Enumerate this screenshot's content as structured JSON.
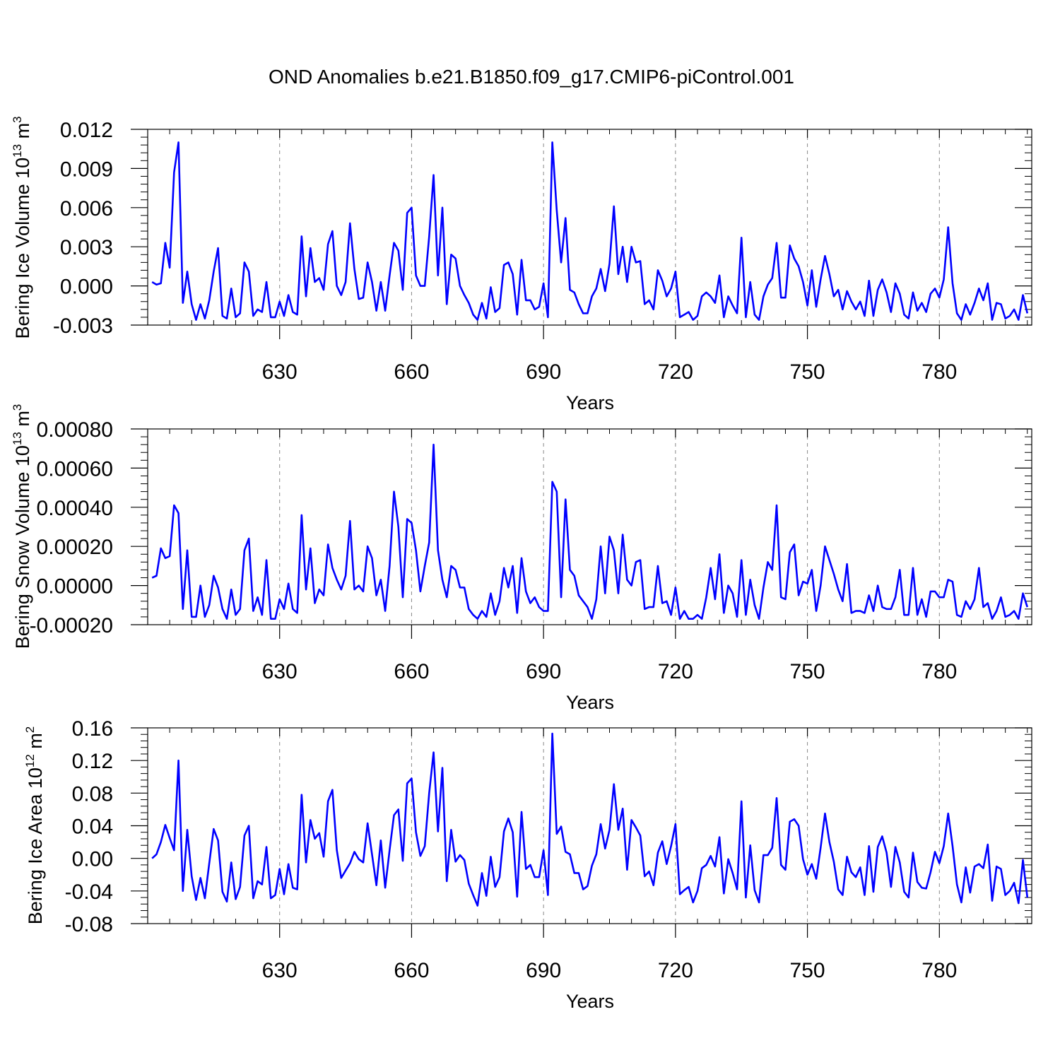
{
  "title": "OND Anomalies b.e21.B1850.f09_g17.CMIP6-piControl.001",
  "line_color": "#0000ff",
  "chart_data": [
    {
      "type": "line",
      "ylabel": {
        "main": "Bering Ice Volume 10",
        "sup1": "13",
        "mid": " m",
        "sup2": "3"
      },
      "xlabel": "Years",
      "x_start": 601,
      "xlim": [
        600,
        801
      ],
      "ylim": [
        -0.003,
        0.012
      ],
      "yticks": [
        -0.003,
        0.0,
        0.003,
        0.006,
        0.009,
        0.012
      ],
      "yticklabels": [
        "-0.003",
        "0.000",
        "0.003",
        "0.006",
        "0.009",
        "0.012"
      ],
      "xticks": [
        630,
        660,
        690,
        720,
        750,
        780
      ],
      "xticklabels": [
        "630",
        "660",
        "690",
        "720",
        "750",
        "780"
      ],
      "series": [
        {
          "name": "Bering Ice Volume",
          "values": [
            0.0003,
            0.0001,
            0.0002,
            0.0033,
            0.0014,
            0.0087,
            0.011,
            -0.0013,
            0.0011,
            -0.0014,
            -0.0026,
            -0.0014,
            -0.0025,
            -0.0011,
            0.0011,
            0.0029,
            -0.0023,
            -0.0025,
            -0.0002,
            -0.0024,
            -0.0021,
            0.0018,
            0.0011,
            -0.0023,
            -0.0018,
            -0.002,
            0.0003,
            -0.0024,
            -0.0024,
            -0.0012,
            -0.0023,
            -0.0007,
            -0.002,
            -0.0022,
            0.0038,
            -0.0008,
            0.0029,
            0.0003,
            0.0006,
            -0.0003,
            0.0032,
            0.0042,
            0.0,
            -0.0007,
            0.0003,
            0.0048,
            0.0013,
            -0.001,
            -0.0009,
            0.0018,
            0.0003,
            -0.0019,
            0.0003,
            -0.0019,
            0.0008,
            0.0033,
            0.0027,
            -0.0003,
            0.0056,
            0.006,
            0.0008,
            0.0,
            0.0,
            0.0038,
            0.0085,
            0.0008,
            0.006,
            -0.0014,
            0.0024,
            0.0021,
            0.0,
            -0.0007,
            -0.0013,
            -0.0022,
            -0.0026,
            -0.0013,
            -0.0025,
            -0.0001,
            -0.002,
            -0.0017,
            0.0016,
            0.0018,
            0.0009,
            -0.0022,
            0.002,
            -0.0011,
            -0.0011,
            -0.0018,
            -0.0016,
            0.0002,
            -0.0024,
            0.011,
            0.0058,
            0.0018,
            0.0052,
            -0.0003,
            -0.0005,
            -0.0014,
            -0.0021,
            -0.0021,
            -0.0008,
            -0.0002,
            0.0013,
            -0.0004,
            0.0017,
            0.0061,
            0.0009,
            0.003,
            0.0003,
            0.003,
            0.0018,
            0.0019,
            -0.0014,
            -0.0011,
            -0.0018,
            0.0012,
            0.0004,
            -0.0008,
            -0.0002,
            0.0011,
            -0.0024,
            -0.0022,
            -0.002,
            -0.0026,
            -0.0023,
            -0.0008,
            -0.0005,
            -0.0008,
            -0.0013,
            0.0008,
            -0.0024,
            -0.0008,
            -0.0015,
            -0.0021,
            0.0037,
            -0.0024,
            0.0003,
            -0.0022,
            -0.0026,
            -0.0008,
            0.0001,
            0.0006,
            0.0033,
            -0.0009,
            -0.0009,
            0.0031,
            0.0021,
            0.0015,
            0.0003,
            -0.0015,
            0.0012,
            -0.0016,
            0.0005,
            0.0023,
            0.0009,
            -0.0008,
            -0.0003,
            -0.0018,
            -0.0004,
            -0.0012,
            -0.0018,
            -0.0012,
            -0.0023,
            0.0004,
            -0.0023,
            -0.0003,
            0.0005,
            -0.0005,
            -0.002,
            0.0002,
            -0.0006,
            -0.0022,
            -0.0025,
            -0.0005,
            -0.0019,
            -0.0013,
            -0.002,
            -0.0006,
            -0.0002,
            -0.0009,
            0.0005,
            0.0045,
            0.0002,
            -0.0021,
            -0.0026,
            -0.0014,
            -0.0022,
            -0.0013,
            -0.0002,
            -0.0011,
            0.0002,
            -0.0026,
            -0.0013,
            -0.0014,
            -0.0025,
            -0.0023,
            -0.0018,
            -0.0026,
            -0.0007,
            -0.0021
          ]
        }
      ]
    },
    {
      "type": "line",
      "ylabel": {
        "main": "Bering Snow Volume 10",
        "sup1": "13",
        "mid": " m",
        "sup2": "3"
      },
      "xlabel": "Years",
      "x_start": 601,
      "xlim": [
        600,
        801
      ],
      "ylim": [
        -0.0002,
        0.0008
      ],
      "yticks": [
        -0.0002,
        0.0,
        0.0002,
        0.0004,
        0.0006,
        0.0008
      ],
      "yticklabels": [
        "-0.00020",
        "0.00000",
        "0.00020",
        "0.00040",
        "0.00060",
        "0.00080"
      ],
      "xticks": [
        630,
        660,
        690,
        720,
        750,
        780
      ],
      "xticklabels": [
        "630",
        "660",
        "690",
        "720",
        "750",
        "780"
      ],
      "series": [
        {
          "name": "Bering Snow Volume",
          "values": [
            4e-05,
            5e-05,
            0.00019,
            0.00014,
            0.00015,
            0.00041,
            0.00037,
            -0.00012,
            0.00018,
            -0.00016,
            -0.00016,
            0.0,
            -0.00016,
            -0.0001,
            5e-05,
            -1e-05,
            -0.00012,
            -0.00017,
            -2e-05,
            -0.00015,
            -0.00012,
            0.00018,
            0.00024,
            -0.00013,
            -6e-05,
            -0.00015,
            0.00013,
            -0.00017,
            -0.00017,
            -7e-05,
            -0.00012,
            1e-05,
            -0.00012,
            -0.00014,
            0.00036,
            -2e-05,
            0.00019,
            -9e-05,
            -2e-05,
            -5e-05,
            0.00021,
            9e-05,
            3e-05,
            -2e-05,
            5e-05,
            0.00033,
            -2e-05,
            0.0,
            -3e-05,
            0.0002,
            0.00014,
            -5e-05,
            3e-05,
            -0.00013,
            0.0001,
            0.00048,
            0.0003,
            -6e-05,
            0.00034,
            0.00032,
            0.00018,
            -3e-05,
            0.0001,
            0.00022,
            0.00072,
            0.00018,
            3e-05,
            -6e-05,
            0.0001,
            8e-05,
            -1e-05,
            -1e-05,
            -0.00012,
            -0.00015,
            -0.00017,
            -0.00013,
            -0.00016,
            -4e-05,
            -0.00015,
            -8e-05,
            9e-05,
            -1e-05,
            0.0001,
            -0.00014,
            0.00014,
            -3e-05,
            -9e-05,
            -6e-05,
            -0.00011,
            -0.00013,
            -0.00013,
            0.00053,
            0.00048,
            -6e-05,
            0.00044,
            8e-05,
            5e-05,
            -5e-05,
            -8e-05,
            -0.00011,
            -0.00017,
            -7e-05,
            0.0002,
            -4e-05,
            0.00025,
            0.00018,
            -4e-05,
            0.00026,
            3e-05,
            0.0,
            0.00012,
            0.00013,
            -0.00012,
            -0.00011,
            -0.00011,
            0.0001,
            -9e-05,
            -8e-05,
            -0.00015,
            -1e-05,
            -0.00017,
            -0.00013,
            -0.00017,
            -0.00017,
            -0.00015,
            -0.00017,
            -6e-05,
            9e-05,
            -7e-05,
            0.00016,
            -0.00014,
            0.0,
            -4e-05,
            -0.00016,
            0.00013,
            -0.00015,
            3e-05,
            -0.0001,
            -0.00017,
            -1e-05,
            0.00012,
            8e-05,
            0.00041,
            -6e-05,
            -7e-05,
            0.00017,
            0.00021,
            -5e-05,
            2e-05,
            1e-05,
            8e-05,
            -0.00013,
            0.0,
            0.0002,
            0.00013,
            6e-05,
            -2e-05,
            -8e-05,
            0.00011,
            -0.00014,
            -0.00013,
            -0.00013,
            -0.00014,
            -5e-05,
            -0.00013,
            0.0,
            -0.00011,
            -0.00012,
            -0.00012,
            -6e-05,
            8e-05,
            -0.00015,
            -0.00015,
            9e-05,
            -0.00015,
            -7e-05,
            -0.00016,
            -3e-05,
            -3e-05,
            -6e-05,
            -6e-05,
            3e-05,
            2e-05,
            -0.00015,
            -0.00016,
            -8e-05,
            -0.00012,
            -7e-05,
            9e-05,
            -0.00011,
            -9e-05,
            -0.00017,
            -0.00013,
            -6e-05,
            -0.00016,
            -0.00015,
            -0.00013,
            -0.00017,
            -4e-05,
            -0.00011
          ]
        }
      ]
    },
    {
      "type": "line",
      "ylabel": {
        "main": "Bering Ice Area 10",
        "sup1": "12",
        "mid": " m",
        "sup2": "2"
      },
      "xlabel": "Years",
      "x_start": 601,
      "xlim": [
        600,
        801
      ],
      "ylim": [
        -0.08,
        0.16
      ],
      "yticks": [
        -0.08,
        -0.04,
        0.0,
        0.04,
        0.08,
        0.12,
        0.16
      ],
      "yticklabels": [
        "-0.08",
        "-0.04",
        "0.00",
        "0.04",
        "0.08",
        "0.12",
        "0.16"
      ],
      "xticks": [
        630,
        660,
        690,
        720,
        750,
        780
      ],
      "xticklabels": [
        "630",
        "660",
        "690",
        "720",
        "750",
        "780"
      ],
      "series": [
        {
          "name": "Bering Ice Area",
          "values": [
            0.0,
            0.005,
            0.02,
            0.041,
            0.025,
            0.01,
            0.12,
            -0.04,
            0.035,
            -0.022,
            -0.051,
            -0.024,
            -0.049,
            -0.006,
            0.036,
            0.022,
            -0.041,
            -0.053,
            -0.005,
            -0.05,
            -0.035,
            0.028,
            0.04,
            -0.049,
            -0.028,
            -0.032,
            0.014,
            -0.049,
            -0.045,
            -0.013,
            -0.044,
            -0.007,
            -0.036,
            -0.038,
            0.078,
            -0.005,
            0.047,
            0.024,
            0.031,
            0.002,
            0.07,
            0.084,
            0.01,
            -0.024,
            -0.015,
            -0.006,
            0.008,
            -0.001,
            -0.005,
            0.043,
            0.005,
            -0.033,
            0.022,
            -0.036,
            0.01,
            0.053,
            0.06,
            -0.003,
            0.092,
            0.098,
            0.032,
            0.003,
            0.015,
            0.08,
            0.13,
            0.033,
            0.111,
            -0.028,
            0.035,
            -0.004,
            0.004,
            -0.002,
            -0.031,
            -0.045,
            -0.058,
            -0.018,
            -0.046,
            0.002,
            -0.035,
            -0.023,
            0.033,
            0.049,
            0.032,
            -0.047,
            0.057,
            -0.013,
            -0.008,
            -0.023,
            -0.023,
            0.01,
            -0.045,
            0.153,
            0.03,
            0.039,
            0.008,
            0.005,
            -0.018,
            -0.018,
            -0.038,
            -0.034,
            -0.009,
            0.005,
            0.042,
            0.012,
            0.035,
            0.091,
            0.035,
            0.061,
            -0.014,
            0.047,
            0.038,
            0.028,
            -0.022,
            -0.016,
            -0.033,
            0.007,
            0.021,
            -0.007,
            0.015,
            0.042,
            -0.044,
            -0.039,
            -0.035,
            -0.054,
            -0.04,
            -0.012,
            -0.008,
            0.003,
            -0.01,
            0.026,
            -0.043,
            -0.001,
            -0.018,
            -0.038,
            0.07,
            -0.048,
            0.016,
            -0.039,
            -0.054,
            0.004,
            0.004,
            0.013,
            0.074,
            -0.008,
            -0.014,
            0.045,
            0.048,
            0.04,
            -0.001,
            -0.02,
            -0.007,
            -0.025,
            0.013,
            0.055,
            0.02,
            -0.004,
            -0.038,
            -0.045,
            0.002,
            -0.017,
            -0.023,
            -0.011,
            -0.045,
            0.015,
            -0.041,
            0.014,
            0.027,
            0.007,
            -0.035,
            0.014,
            -0.005,
            -0.041,
            -0.048,
            0.007,
            -0.029,
            -0.036,
            -0.037,
            -0.017,
            0.008,
            -0.006,
            0.015,
            0.055,
            0.015,
            -0.032,
            -0.054,
            -0.011,
            -0.042,
            -0.01,
            -0.007,
            -0.012,
            0.017,
            -0.052,
            -0.01,
            -0.013,
            -0.045,
            -0.04,
            -0.03,
            -0.055,
            -0.002,
            -0.048
          ]
        }
      ]
    }
  ]
}
